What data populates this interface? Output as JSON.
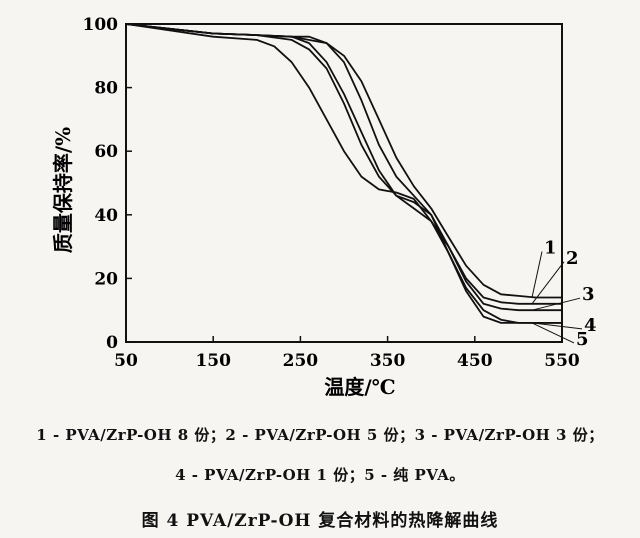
{
  "chart_data": {
    "type": "line",
    "xlabel": "温度/℃",
    "ylabel": "质量保持率/%",
    "xlim": [
      50,
      550
    ],
    "ylim": [
      0,
      100
    ],
    "xticks": [
      "50",
      "150",
      "250",
      "350",
      "450",
      "550"
    ],
    "yticks": [
      "0",
      "20",
      "40",
      "60",
      "80",
      "100"
    ],
    "grid": false,
    "series": [
      {
        "name": "1",
        "x": [
          50,
          100,
          150,
          200,
          240,
          280,
          300,
          320,
          340,
          360,
          380,
          400,
          420,
          440,
          460,
          480,
          500,
          520,
          550
        ],
        "y": [
          100,
          98.5,
          97,
          96.5,
          96,
          94,
          90,
          82,
          70,
          58,
          49,
          42,
          33,
          24,
          18,
          15,
          14.5,
          14,
          14
        ]
      },
      {
        "name": "2",
        "x": [
          50,
          100,
          150,
          200,
          240,
          260,
          280,
          300,
          320,
          340,
          360,
          380,
          400,
          420,
          440,
          460,
          480,
          500,
          520,
          550
        ],
        "y": [
          100,
          98.5,
          97,
          96.5,
          96,
          94,
          88,
          78,
          66,
          54,
          46,
          42,
          38,
          30,
          20,
          14,
          12.5,
          12,
          12,
          12
        ]
      },
      {
        "name": "3",
        "x": [
          50,
          100,
          150,
          200,
          240,
          260,
          280,
          300,
          320,
          340,
          360,
          380,
          400,
          420,
          440,
          460,
          480,
          500,
          520,
          550
        ],
        "y": [
          100,
          98.5,
          97,
          96.5,
          95,
          92,
          86,
          75,
          62,
          52,
          46,
          44,
          40,
          30,
          19,
          12,
          10.5,
          10,
          10,
          10
        ]
      },
      {
        "name": "4",
        "x": [
          50,
          100,
          150,
          200,
          220,
          240,
          260,
          280,
          300,
          320,
          340,
          360,
          380,
          400,
          420,
          440,
          460,
          480,
          500,
          550
        ],
        "y": [
          100,
          98,
          96,
          95,
          93,
          88,
          80,
          70,
          60,
          52,
          48,
          47,
          45,
          38,
          28,
          16,
          8,
          6,
          6,
          6
        ]
      },
      {
        "name": "5",
        "x": [
          50,
          100,
          150,
          200,
          240,
          260,
          280,
          300,
          320,
          340,
          360,
          380,
          400,
          420,
          440,
          460,
          480,
          500,
          520,
          550
        ],
        "y": [
          100,
          98.5,
          97,
          96.5,
          96,
          96,
          94,
          88,
          76,
          62,
          52,
          46,
          40,
          28,
          17,
          10,
          7,
          6,
          6,
          6
        ]
      }
    ]
  },
  "legend_text": {
    "line1": "1 - PVA/ZrP-OH 8 份；2 - PVA/ZrP-OH 5 份；3 - PVA/ZrP-OH 3 份；",
    "line2": "4 - PVA/ZrP-OH 1 份；5 - 纯 PVA。"
  },
  "caption": "图 4  PVA/ZrP-OH 复合材料的热降解曲线"
}
